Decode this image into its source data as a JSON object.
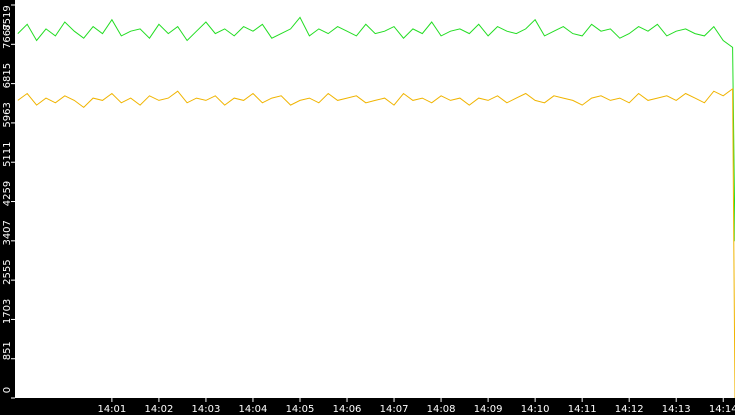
{
  "chart_data": {
    "type": "line",
    "x": [
      -1.0,
      -0.8,
      -0.6,
      -0.4,
      -0.2,
      0.0,
      0.2,
      0.4,
      0.6,
      0.8,
      1.0,
      1.2,
      1.4,
      1.6,
      1.8,
      2.0,
      2.2,
      2.4,
      2.6,
      2.8,
      3.0,
      3.2,
      3.4,
      3.6,
      3.8,
      4.0,
      4.2,
      4.4,
      4.6,
      4.8,
      5.0,
      5.2,
      5.4,
      5.6,
      5.8,
      6.0,
      6.2,
      6.4,
      6.6,
      6.8,
      7.0,
      7.2,
      7.4,
      7.6,
      7.8,
      8.0,
      8.2,
      8.4,
      8.6,
      8.8,
      9.0,
      9.2,
      9.4,
      9.6,
      9.8,
      10.0,
      10.2,
      10.4,
      10.6,
      10.8,
      11.0,
      11.2,
      11.4,
      11.6,
      11.8,
      12.0,
      12.2,
      12.4,
      12.6,
      12.8,
      13.0,
      13.2,
      13.4,
      13.6,
      13.8,
      14.0,
      14.2,
      14.25
    ],
    "series": [
      {
        "color": "#22dd22",
        "values": [
          7900,
          8100,
          7750,
          8000,
          7850,
          8150,
          7950,
          7800,
          8050,
          7900,
          8200,
          7850,
          7950,
          8000,
          7800,
          8100,
          7900,
          8050,
          7750,
          7950,
          8150,
          7900,
          8000,
          7850,
          8050,
          7950,
          8100,
          7800,
          7900,
          8000,
          8250,
          7850,
          8000,
          7900,
          8050,
          7950,
          7850,
          8100,
          7900,
          7950,
          8050,
          7800,
          8000,
          7900,
          8150,
          7850,
          7950,
          8000,
          7900,
          8100,
          7850,
          8050,
          7950,
          7900,
          8000,
          8200,
          7850,
          7950,
          8050,
          7900,
          7850,
          8100,
          7950,
          8000,
          7800,
          7900,
          8050,
          7950,
          8100,
          7850,
          7950,
          8000,
          7900,
          7850,
          8050,
          7750,
          7600,
          3400
        ]
      },
      {
        "color": "#f0b400",
        "values": [
          6450,
          6600,
          6350,
          6500,
          6400,
          6550,
          6450,
          6300,
          6500,
          6450,
          6600,
          6400,
          6500,
          6350,
          6550,
          6450,
          6500,
          6650,
          6400,
          6500,
          6450,
          6550,
          6350,
          6500,
          6450,
          6600,
          6400,
          6500,
          6550,
          6350,
          6450,
          6500,
          6400,
          6600,
          6450,
          6500,
          6550,
          6400,
          6450,
          6500,
          6350,
          6600,
          6450,
          6500,
          6400,
          6550,
          6450,
          6500,
          6350,
          6500,
          6450,
          6550,
          6400,
          6500,
          6600,
          6450,
          6400,
          6550,
          6500,
          6450,
          6350,
          6500,
          6550,
          6450,
          6500,
          6400,
          6600,
          6450,
          6500,
          6550,
          6450,
          6600,
          6500,
          6400,
          6650,
          6550,
          6700,
          0
        ]
      }
    ],
    "xlim": [
      -1.06,
      14.25
    ],
    "xticks": [
      {
        "value": 1,
        "label": "14:01"
      },
      {
        "value": 2,
        "label": "14:02"
      },
      {
        "value": 3,
        "label": "14:03"
      },
      {
        "value": 4,
        "label": "14:04"
      },
      {
        "value": 5,
        "label": "14:05"
      },
      {
        "value": 6,
        "label": "14:06"
      },
      {
        "value": 7,
        "label": "14:07"
      },
      {
        "value": 8,
        "label": "14:08"
      },
      {
        "value": 9,
        "label": "14:09"
      },
      {
        "value": 10,
        "label": "14:10"
      },
      {
        "value": 11,
        "label": "14:11"
      },
      {
        "value": 12,
        "label": "14:12"
      },
      {
        "value": 13,
        "label": "14:13"
      },
      {
        "value": 14,
        "label": "14:14"
      }
    ],
    "ylim": [
      0,
      8519
    ],
    "yticks": [
      0,
      851,
      1703,
      2555,
      3407,
      4259,
      5111,
      5963,
      6815,
      7667,
      8519
    ]
  }
}
